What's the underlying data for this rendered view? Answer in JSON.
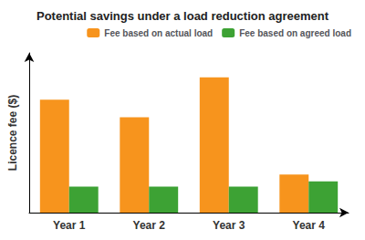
{
  "chart_data": {
    "type": "bar",
    "title": "Potential savings under a load reduction agreement",
    "ylabel": "Licence fee ($)",
    "categories": [
      "Year 1",
      "Year 2",
      "Year 3",
      "Year 4"
    ],
    "series": [
      {
        "name": "Fee based on actual load",
        "color": "#F7941D",
        "values": [
          0.65,
          0.55,
          0.78,
          0.22
        ]
      },
      {
        "name": "Fee based on agreed load",
        "color": "#3DA234",
        "values": [
          0.15,
          0.15,
          0.15,
          0.18
        ]
      }
    ],
    "ylim": [
      0,
      0.92
    ],
    "yticks": [],
    "grid": false,
    "legend": "upper right",
    "tick_labels": "x"
  }
}
